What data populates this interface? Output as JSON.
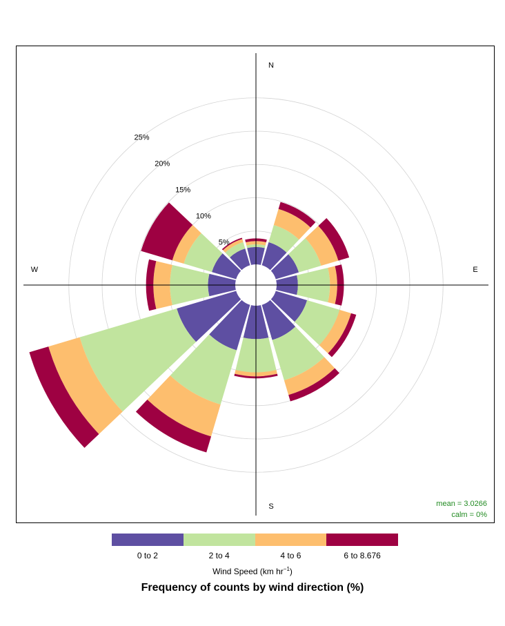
{
  "chart_data": {
    "type": "polar-bar",
    "title": "Frequency of counts by wind direction (%)",
    "compass": {
      "north": "N",
      "east": "E",
      "south": "S",
      "west": "W"
    },
    "radial_ticks": [
      5,
      10,
      15,
      20,
      25
    ],
    "radial_tick_labels": [
      "5%",
      "10%",
      "15%",
      "20%",
      "25%"
    ],
    "radial_max": 30,
    "legend": {
      "title": "Wind Speed (km hr",
      "title_superscript": "−1",
      "title_suffix": ")",
      "position": "bottom"
    },
    "speed_bins": [
      {
        "name": "0 to 2",
        "color": "#5e4fa2"
      },
      {
        "name": "2 to 4",
        "color": "#c1e49e"
      },
      {
        "name": "4 to 6",
        "color": "#fdbe6e"
      },
      {
        "name": "6 to 8.676",
        "color": "#9e0142"
      }
    ],
    "directions": [
      0,
      30,
      60,
      90,
      120,
      150,
      180,
      210,
      240,
      270,
      300,
      330
    ],
    "cumulative_percent": [
      [
        2.6,
        3.0,
        3.5,
        3.9
      ],
      [
        3.6,
        6.3,
        8.8,
        9.9
      ],
      [
        3.6,
        7.1,
        9.8,
        11.5
      ],
      [
        3.2,
        8.0,
        9.1,
        10.1
      ],
      [
        4.9,
        10.0,
        11.8,
        12.6
      ],
      [
        5.5,
        11.8,
        14.1,
        15.1
      ],
      [
        5.0,
        10.0,
        10.6,
        10.9
      ],
      [
        7.1,
        15.6,
        20.6,
        23.1
      ],
      [
        9.3,
        24.5,
        29.4,
        32.4
      ],
      [
        4.1,
        9.8,
        12.3,
        13.4
      ],
      [
        3.8,
        8.2,
        10.0,
        14.9
      ],
      [
        2.6,
        3.6,
        4.1,
        4.3
      ]
    ],
    "mean_text": "mean = 3.0266",
    "calm_text": "calm = 0%"
  }
}
